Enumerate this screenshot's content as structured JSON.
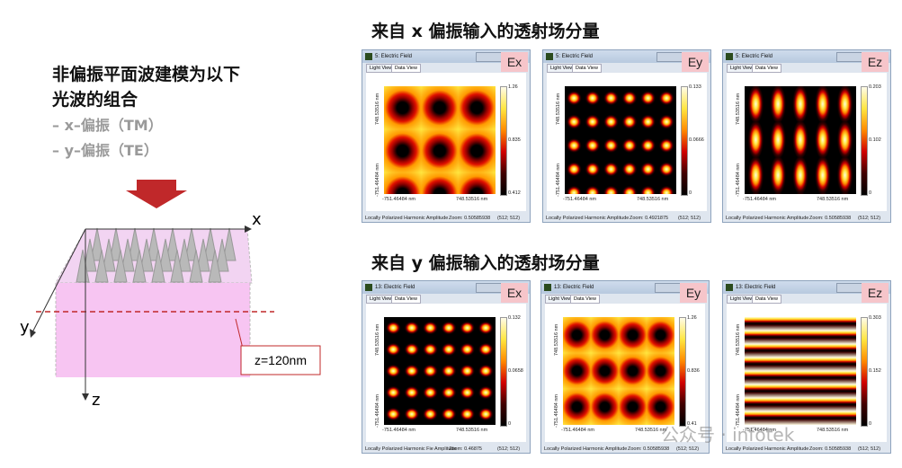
{
  "left": {
    "heading": [
      "非偏振平面波建模为以下",
      "光波的组合"
    ],
    "bullets": [
      "– x–偏振（TM）",
      "– y–偏振（TE）"
    ],
    "axes": {
      "x": "x",
      "y": "y",
      "z": "z"
    },
    "thickness_label": "z=120nm"
  },
  "sections": [
    {
      "title": "来自 x 偏振输入的透射场分量",
      "windows": [
        {
          "title": "5: Electric Field",
          "tabs": [
            "Light View",
            "Data View"
          ],
          "component": "Ex",
          "colorbar": [
            "1.26",
            "0.835",
            "0.412"
          ],
          "y_axis": [
            "748.53516 nm",
            "-751.46484 nm"
          ],
          "x_axis": [
            "-751.46484 nm",
            "748.53516 nm"
          ],
          "status": [
            "Locally Polarized Harmonic  Amplitude",
            "Zoom: 0.50585938",
            "(512; 512)"
          ]
        },
        {
          "title": "5: Electric Field",
          "tabs": [
            "Light View",
            "Data View"
          ],
          "component": "Ey",
          "colorbar": [
            "0.133",
            "0.0666",
            "0"
          ],
          "y_axis": [
            "748.53516 nm",
            "-751.46484 nm"
          ],
          "x_axis": [
            "-751.46484 nm",
            "748.53516 nm"
          ],
          "status": [
            "Locally Polarized Harmonic  Amplitude",
            "Zoom: 0.4921875",
            "(512; 512)"
          ]
        },
        {
          "title": "5: Electric Field",
          "tabs": [
            "Light View",
            "Data View"
          ],
          "component": "Ez",
          "colorbar": [
            "0.203",
            "0.102",
            "0"
          ],
          "y_axis": [
            "748.53516 nm",
            "-751.46484 nm"
          ],
          "x_axis": [
            "-751.46484 nm",
            "748.53516 nm"
          ],
          "status": [
            "Locally Polarized Harmonic  Amplitude",
            "Zoom: 0.50585938",
            "(512; 512)"
          ]
        }
      ]
    },
    {
      "title": "来自 y 偏振输入的透射场分量",
      "windows": [
        {
          "title": "13: Electric Field",
          "tabs": [
            "Light View",
            "Data View"
          ],
          "component": "Ex",
          "colorbar": [
            "0.132",
            "0.0658",
            "0"
          ],
          "y_axis": [
            "748.53516 nm",
            "-751.46484 nm"
          ],
          "x_axis": [
            "-751.46484 nm",
            "748.53516 nm"
          ],
          "status": [
            "Locally Polarized Harmonic Fie Amplitude",
            "Zoom: 0.46875",
            "(512; 512)"
          ]
        },
        {
          "title": "13: Electric Field",
          "tabs": [
            "Light View",
            "Data View"
          ],
          "component": "Ey",
          "colorbar": [
            "1.26",
            "0.836",
            "0.41"
          ],
          "y_axis": [
            "748.53516 nm",
            "-751.46484 nm"
          ],
          "x_axis": [
            "-751.46484 nm",
            "748.53516 nm"
          ],
          "status": [
            "Locally Polarized Harmonic  Amplitude",
            "Zoom: 0.50585938",
            "(512; 512)"
          ]
        },
        {
          "title": "13: Electric Field",
          "tabs": [
            "Light View",
            "Data View"
          ],
          "component": "Ez",
          "colorbar": [
            "0.303",
            "0.152",
            "0"
          ],
          "y_axis": [
            "748.53516 nm",
            "-751.46484 nm"
          ],
          "x_axis": [
            "-751.46484 nm",
            "748.53516 nm"
          ],
          "status": [
            "Locally Polarized Harmonic  Amplitude",
            "Zoom: 0.50585938",
            "(512; 512)"
          ]
        }
      ]
    }
  ],
  "watermark": "公众号 · infotek"
}
